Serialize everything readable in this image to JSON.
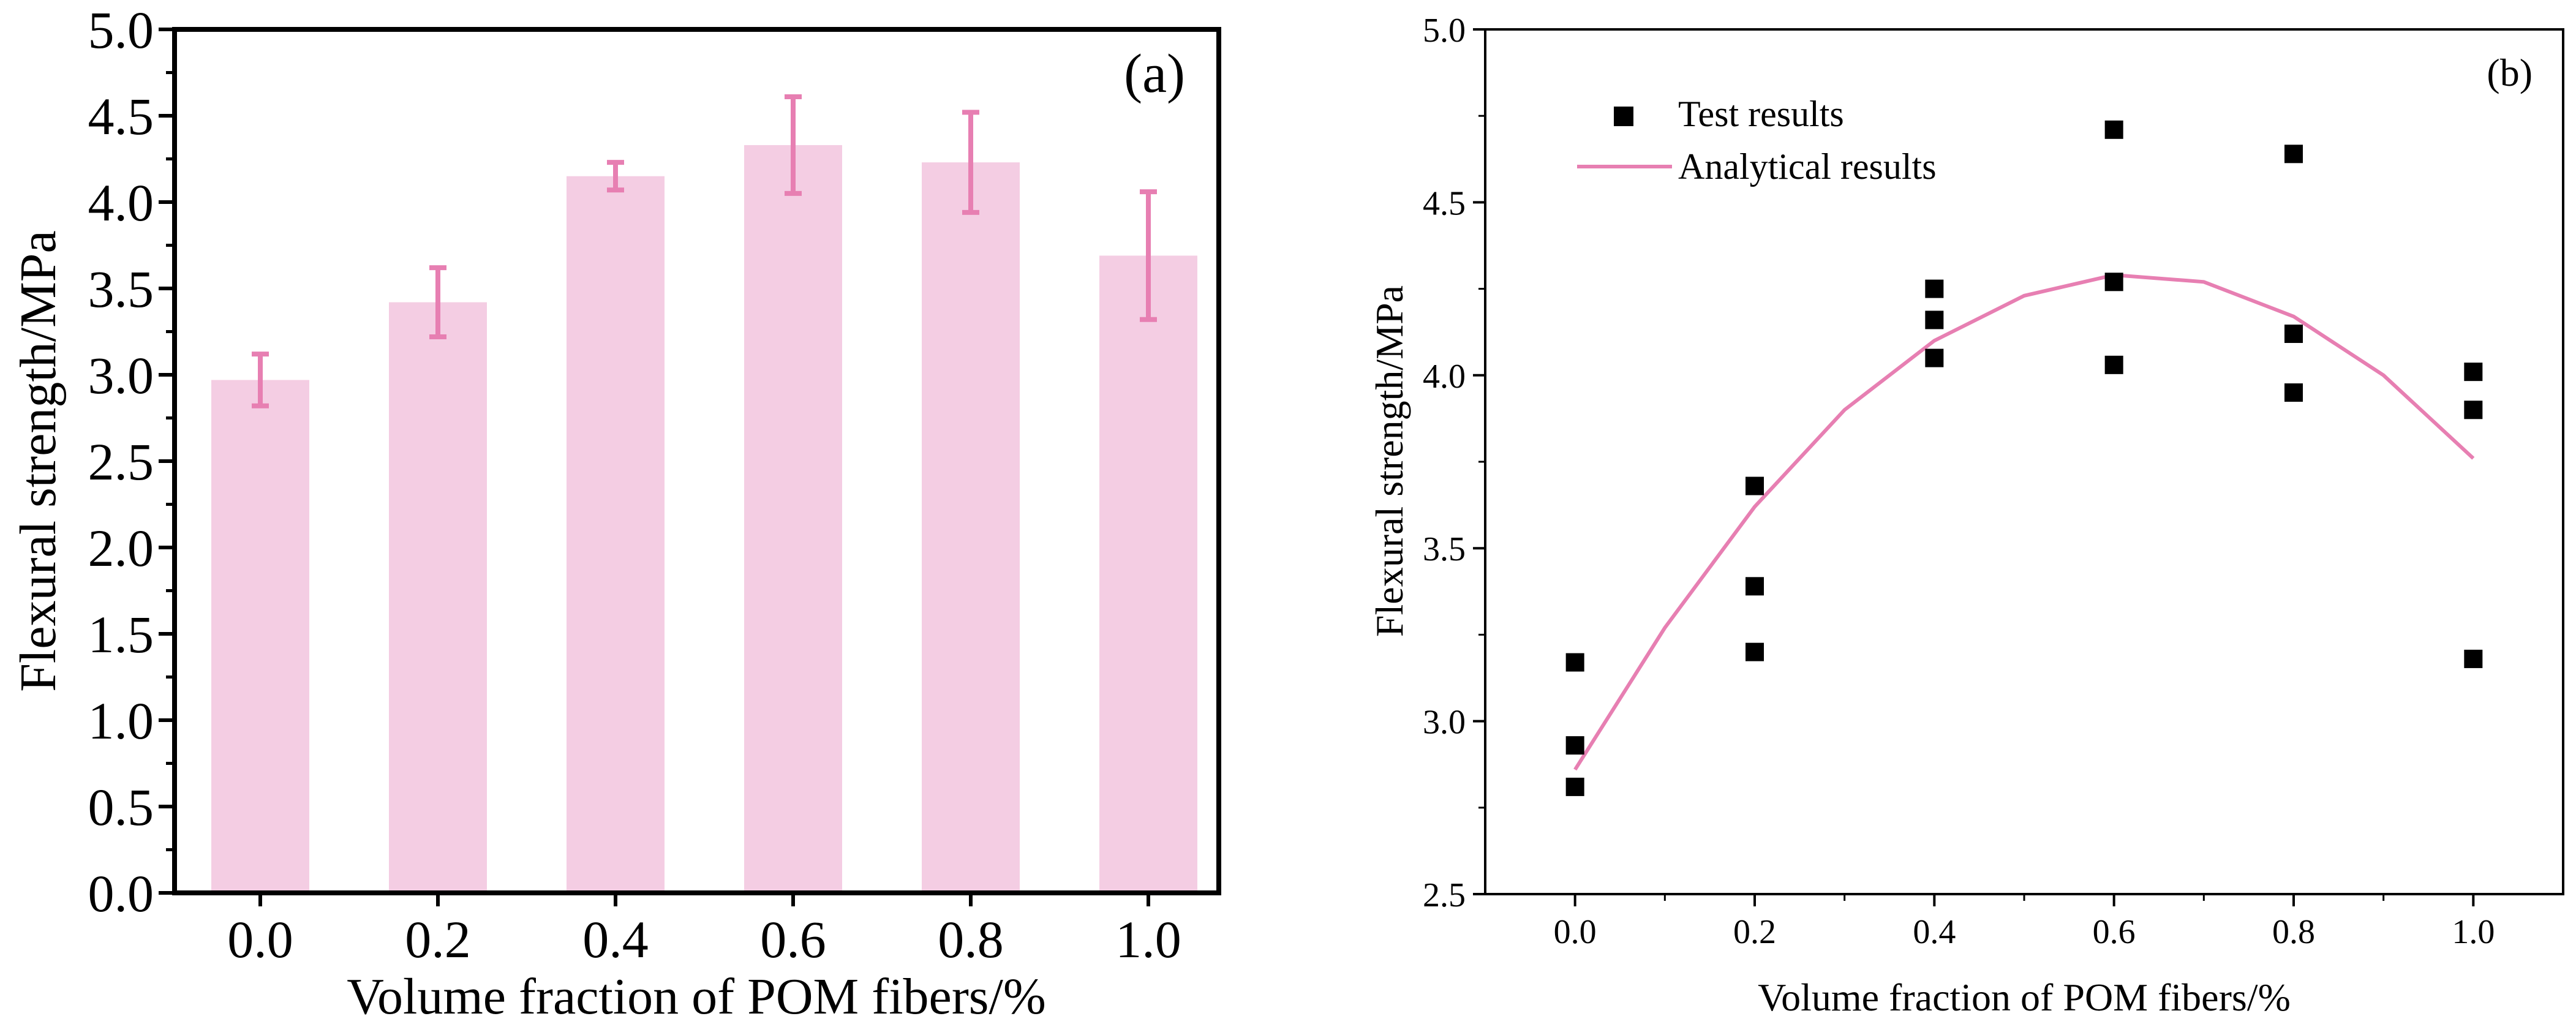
{
  "chart_data": [
    {
      "type": "bar",
      "panel": "(a)",
      "xlabel": "Volume fraction of POM fibers/%",
      "ylabel": "Flexural strength/MPa",
      "categories": [
        "0.0",
        "0.2",
        "0.4",
        "0.6",
        "0.8",
        "1.0"
      ],
      "values": [
        2.97,
        3.42,
        4.15,
        4.33,
        4.23,
        3.69
      ],
      "errors": [
        0.15,
        0.2,
        0.08,
        0.28,
        0.29,
        0.37
      ],
      "ylim": [
        0,
        5
      ],
      "yticks": [
        "0.0",
        "0.5",
        "1.0",
        "1.5",
        "2.0",
        "2.5",
        "3.0",
        "3.5",
        "4.0",
        "4.5",
        "5.0"
      ],
      "bar_color": "#f4cde3",
      "error_color": "#e77fb2"
    },
    {
      "type": "scatter",
      "panel": "(b)",
      "xlabel": "Volume fraction of POM fibers/%",
      "ylabel": "Flexural strength/MPa",
      "xlim": [
        -0.1,
        1.1
      ],
      "ylim": [
        2.5,
        5.0
      ],
      "xticks": [
        "0.0",
        "0.2",
        "0.4",
        "0.6",
        "0.8",
        "1.0"
      ],
      "yticks": [
        "2.5",
        "3.0",
        "3.5",
        "4.0",
        "4.5",
        "5.0"
      ],
      "legend": [
        "Test results",
        "Analytical results"
      ],
      "legend_position": "top-left",
      "series": [
        {
          "name": "Test results",
          "kind": "scatter",
          "marker": "square",
          "color": "#000000",
          "x": [
            0.0,
            0.0,
            0.0,
            0.2,
            0.2,
            0.2,
            0.4,
            0.4,
            0.4,
            0.6,
            0.6,
            0.6,
            0.8,
            0.8,
            0.8,
            1.0,
            1.0,
            1.0
          ],
          "y": [
            3.17,
            2.93,
            2.81,
            3.68,
            3.39,
            3.2,
            4.25,
            4.16,
            4.05,
            4.71,
            4.27,
            4.03,
            4.64,
            4.12,
            3.95,
            4.01,
            3.9,
            3.18
          ]
        },
        {
          "name": "Analytical results",
          "kind": "line",
          "color": "#e77fb2",
          "x": [
            0.0,
            0.1,
            0.2,
            0.3,
            0.4,
            0.5,
            0.6,
            0.7,
            0.8,
            0.9,
            1.0
          ],
          "y": [
            2.86,
            3.27,
            3.62,
            3.9,
            4.1,
            4.23,
            4.29,
            4.27,
            4.17,
            4.0,
            3.76
          ]
        }
      ]
    }
  ]
}
